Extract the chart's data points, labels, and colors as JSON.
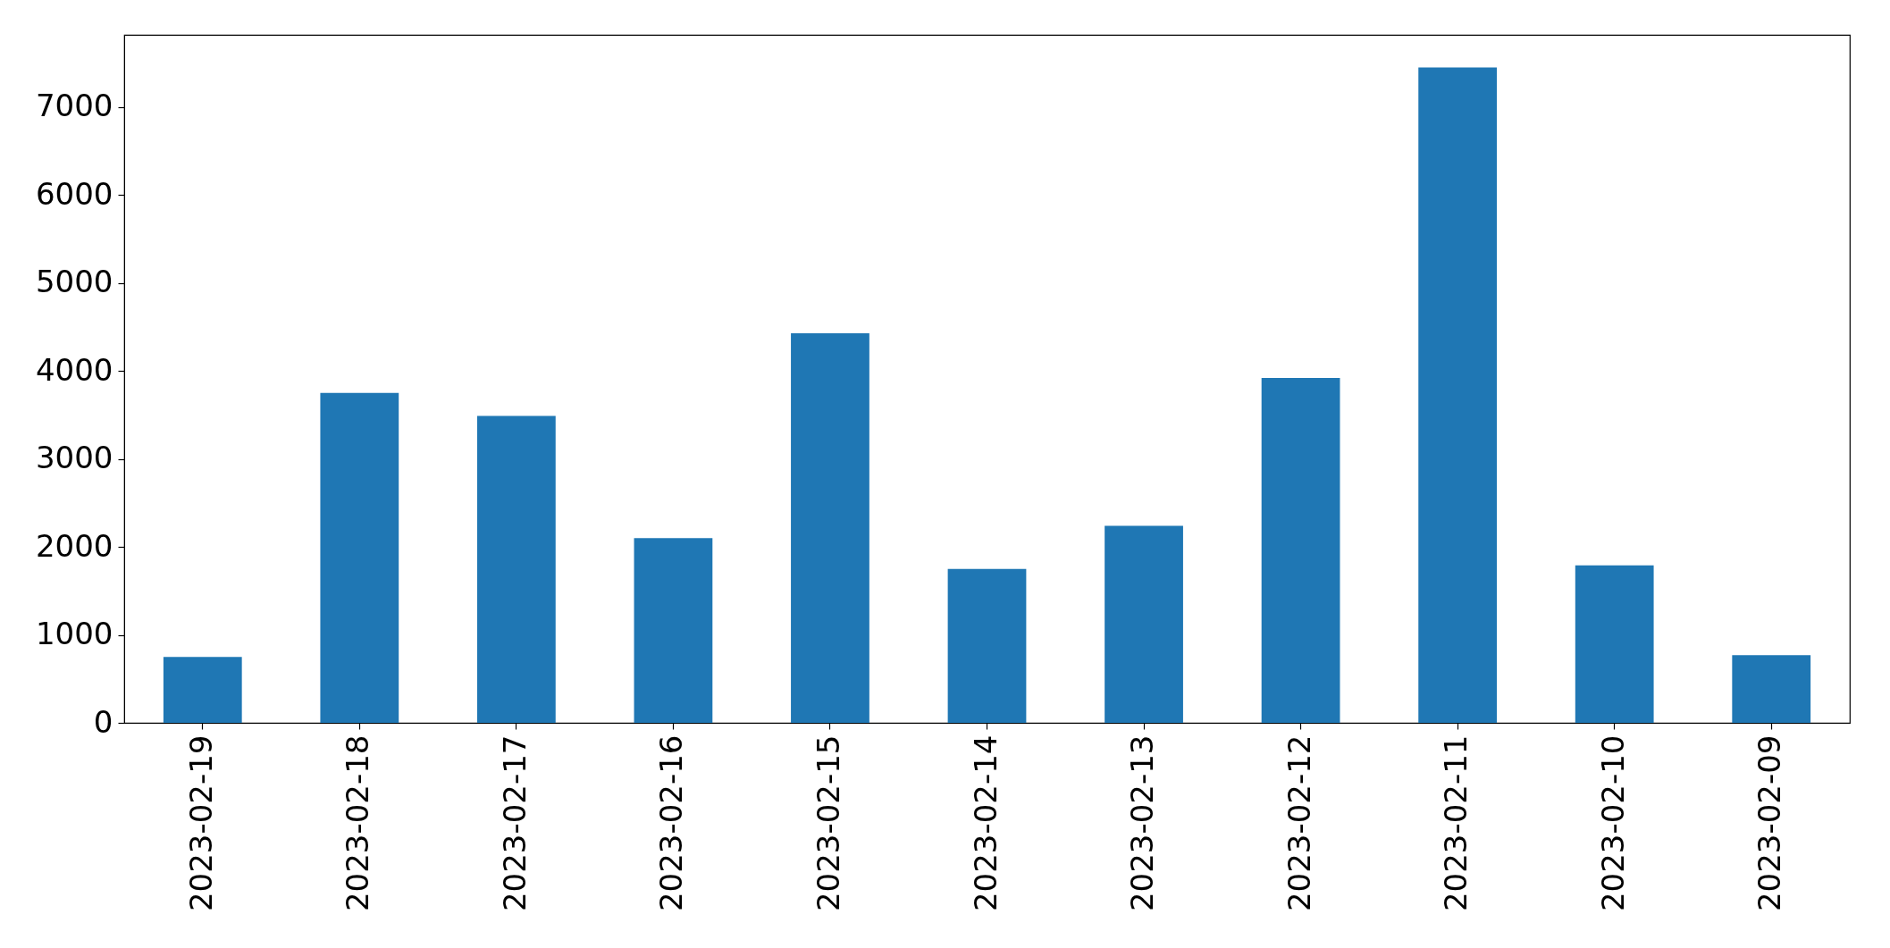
{
  "chart_data": {
    "type": "bar",
    "categories": [
      "2023-02-19",
      "2023-02-18",
      "2023-02-17",
      "2023-02-16",
      "2023-02-15",
      "2023-02-14",
      "2023-02-13",
      "2023-02-12",
      "2023-02-11",
      "2023-02-10",
      "2023-02-09"
    ],
    "values": [
      750,
      3750,
      3490,
      2100,
      4430,
      1750,
      2240,
      3920,
      7450,
      1790,
      770
    ],
    "color": "#1f77b4",
    "ylim": [
      0,
      7822
    ],
    "yticks": [
      0,
      1000,
      2000,
      3000,
      4000,
      5000,
      6000,
      7000
    ]
  }
}
